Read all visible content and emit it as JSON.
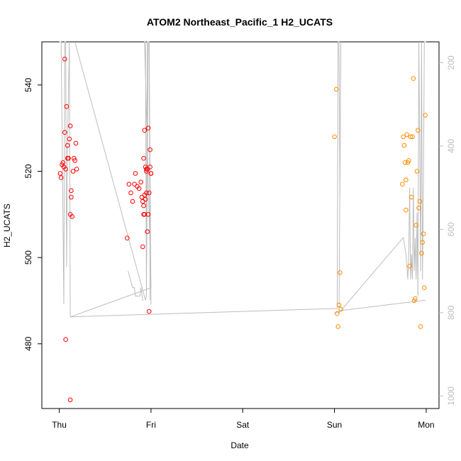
{
  "chart_data": {
    "type": "scatter",
    "title": "ATOM2 Northeast_Pacific_1 H2_UCATS",
    "xlabel": "Date",
    "ylabel": "H2_UCATS",
    "x_ticks": [
      "Thu",
      "Fri",
      "Sat",
      "Sun",
      "Mon"
    ],
    "x_tick_values": [
      0,
      1,
      2,
      3,
      4
    ],
    "xlim": [
      -0.19,
      4.14
    ],
    "ylim": [
      465,
      550
    ],
    "y_ticks": [
      480,
      500,
      520,
      540
    ],
    "y2_ticks": [
      200,
      400,
      600,
      800,
      1000
    ],
    "y2_range_bottom_top": [
      1030,
      150
    ],
    "grid": false,
    "colors": {
      "series_1": "#ff0000",
      "series_2": "#ff8c00",
      "pressure": "#bdbdbd"
    },
    "series": [
      {
        "x": [
          0.01,
          0.02,
          0.03,
          0.04,
          0.05,
          0.06,
          0.06,
          0.07,
          0.08,
          0.09,
          0.1,
          0.11,
          0.12,
          0.13,
          0.13,
          0.14,
          0.15,
          0.16,
          0.17,
          0.18,
          0.19,
          0.12,
          0.12,
          0.07,
          0.09,
          0.74,
          0.76,
          0.78,
          0.8,
          0.82,
          0.83,
          0.85,
          0.87,
          0.89,
          0.9,
          0.91,
          0.92,
          0.93,
          0.94,
          0.95,
          0.96,
          0.97,
          0.98,
          0.99,
          1.0,
          0.91,
          0.92,
          0.92,
          0.93,
          0.93,
          0.94,
          0.95,
          0.95,
          0.96,
          0.97,
          0.98,
          0.99,
          1.0
        ],
        "y": [
          519.5,
          518.5,
          521.5,
          522.0,
          521.0,
          546.0,
          529.0,
          520.5,
          535.0,
          523.0,
          523.0,
          527.5,
          530.5,
          514.0,
          515.5,
          509.5,
          520.0,
          523.0,
          522.5,
          526.5,
          520.5,
          510.0,
          467.0,
          481.0,
          526.0,
          504.5,
          517.0,
          515.0,
          513.0,
          517.0,
          519.5,
          516.5,
          516.0,
          517.5,
          514.0,
          513.0,
          523.0,
          529.5,
          521.0,
          520.5,
          520.5,
          510.0,
          515.0,
          525.0,
          519.5,
          502.5,
          510.0,
          512.0,
          514.5,
          510.0,
          513.5,
          520.0,
          515.0,
          506.0,
          530.0,
          487.5,
          521.0,
          519.5
        ]
      },
      {
        "x": [
          3.0,
          3.02,
          3.03,
          3.04,
          3.05,
          3.06,
          3.07,
          3.74,
          3.75,
          3.76,
          3.77,
          3.78,
          3.78,
          3.79,
          3.8,
          3.81,
          3.82,
          3.83,
          3.84,
          3.85,
          3.86,
          3.87,
          3.88,
          3.89,
          3.9,
          3.91,
          3.92,
          3.93,
          3.94,
          3.95,
          3.96,
          3.97,
          3.98,
          3.99
        ],
        "y": [
          528.0,
          539.0,
          487.0,
          484.0,
          489.0,
          496.5,
          488.0,
          517.0,
          528.0,
          526.0,
          522.0,
          518.0,
          511.0,
          528.5,
          522.0,
          522.5,
          498.0,
          528.0,
          514.0,
          528.0,
          541.5,
          490.0,
          490.5,
          507.5,
          520.0,
          529.5,
          511.5,
          513.0,
          484.0,
          501.0,
          503.5,
          505.5,
          493.0,
          533.0
        ]
      }
    ]
  }
}
